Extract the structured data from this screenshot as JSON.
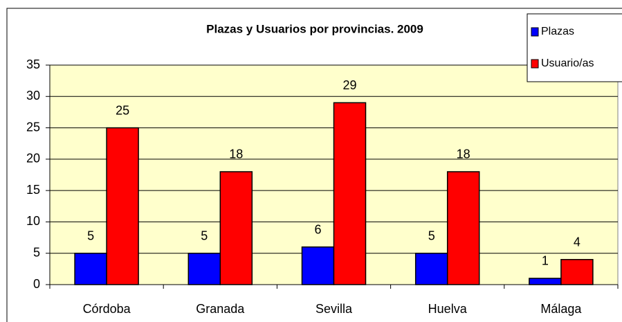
{
  "chart_data": {
    "type": "bar",
    "title": "Plazas y Usuarios por provincias. 2009",
    "categories": [
      "Córdoba",
      "Granada",
      "Sevilla",
      "Huelva",
      "Málaga"
    ],
    "series": [
      {
        "name": "Plazas",
        "color": "#0000ff",
        "values": [
          5,
          5,
          6,
          5,
          1
        ]
      },
      {
        "name": "Usuario/as",
        "color": "#ff0000",
        "values": [
          25,
          18,
          29,
          18,
          4
        ]
      }
    ],
    "ylim": [
      0,
      35
    ],
    "yticks": [
      0,
      5,
      10,
      15,
      20,
      25,
      30,
      35
    ],
    "grid": true,
    "legend": "top-right"
  }
}
